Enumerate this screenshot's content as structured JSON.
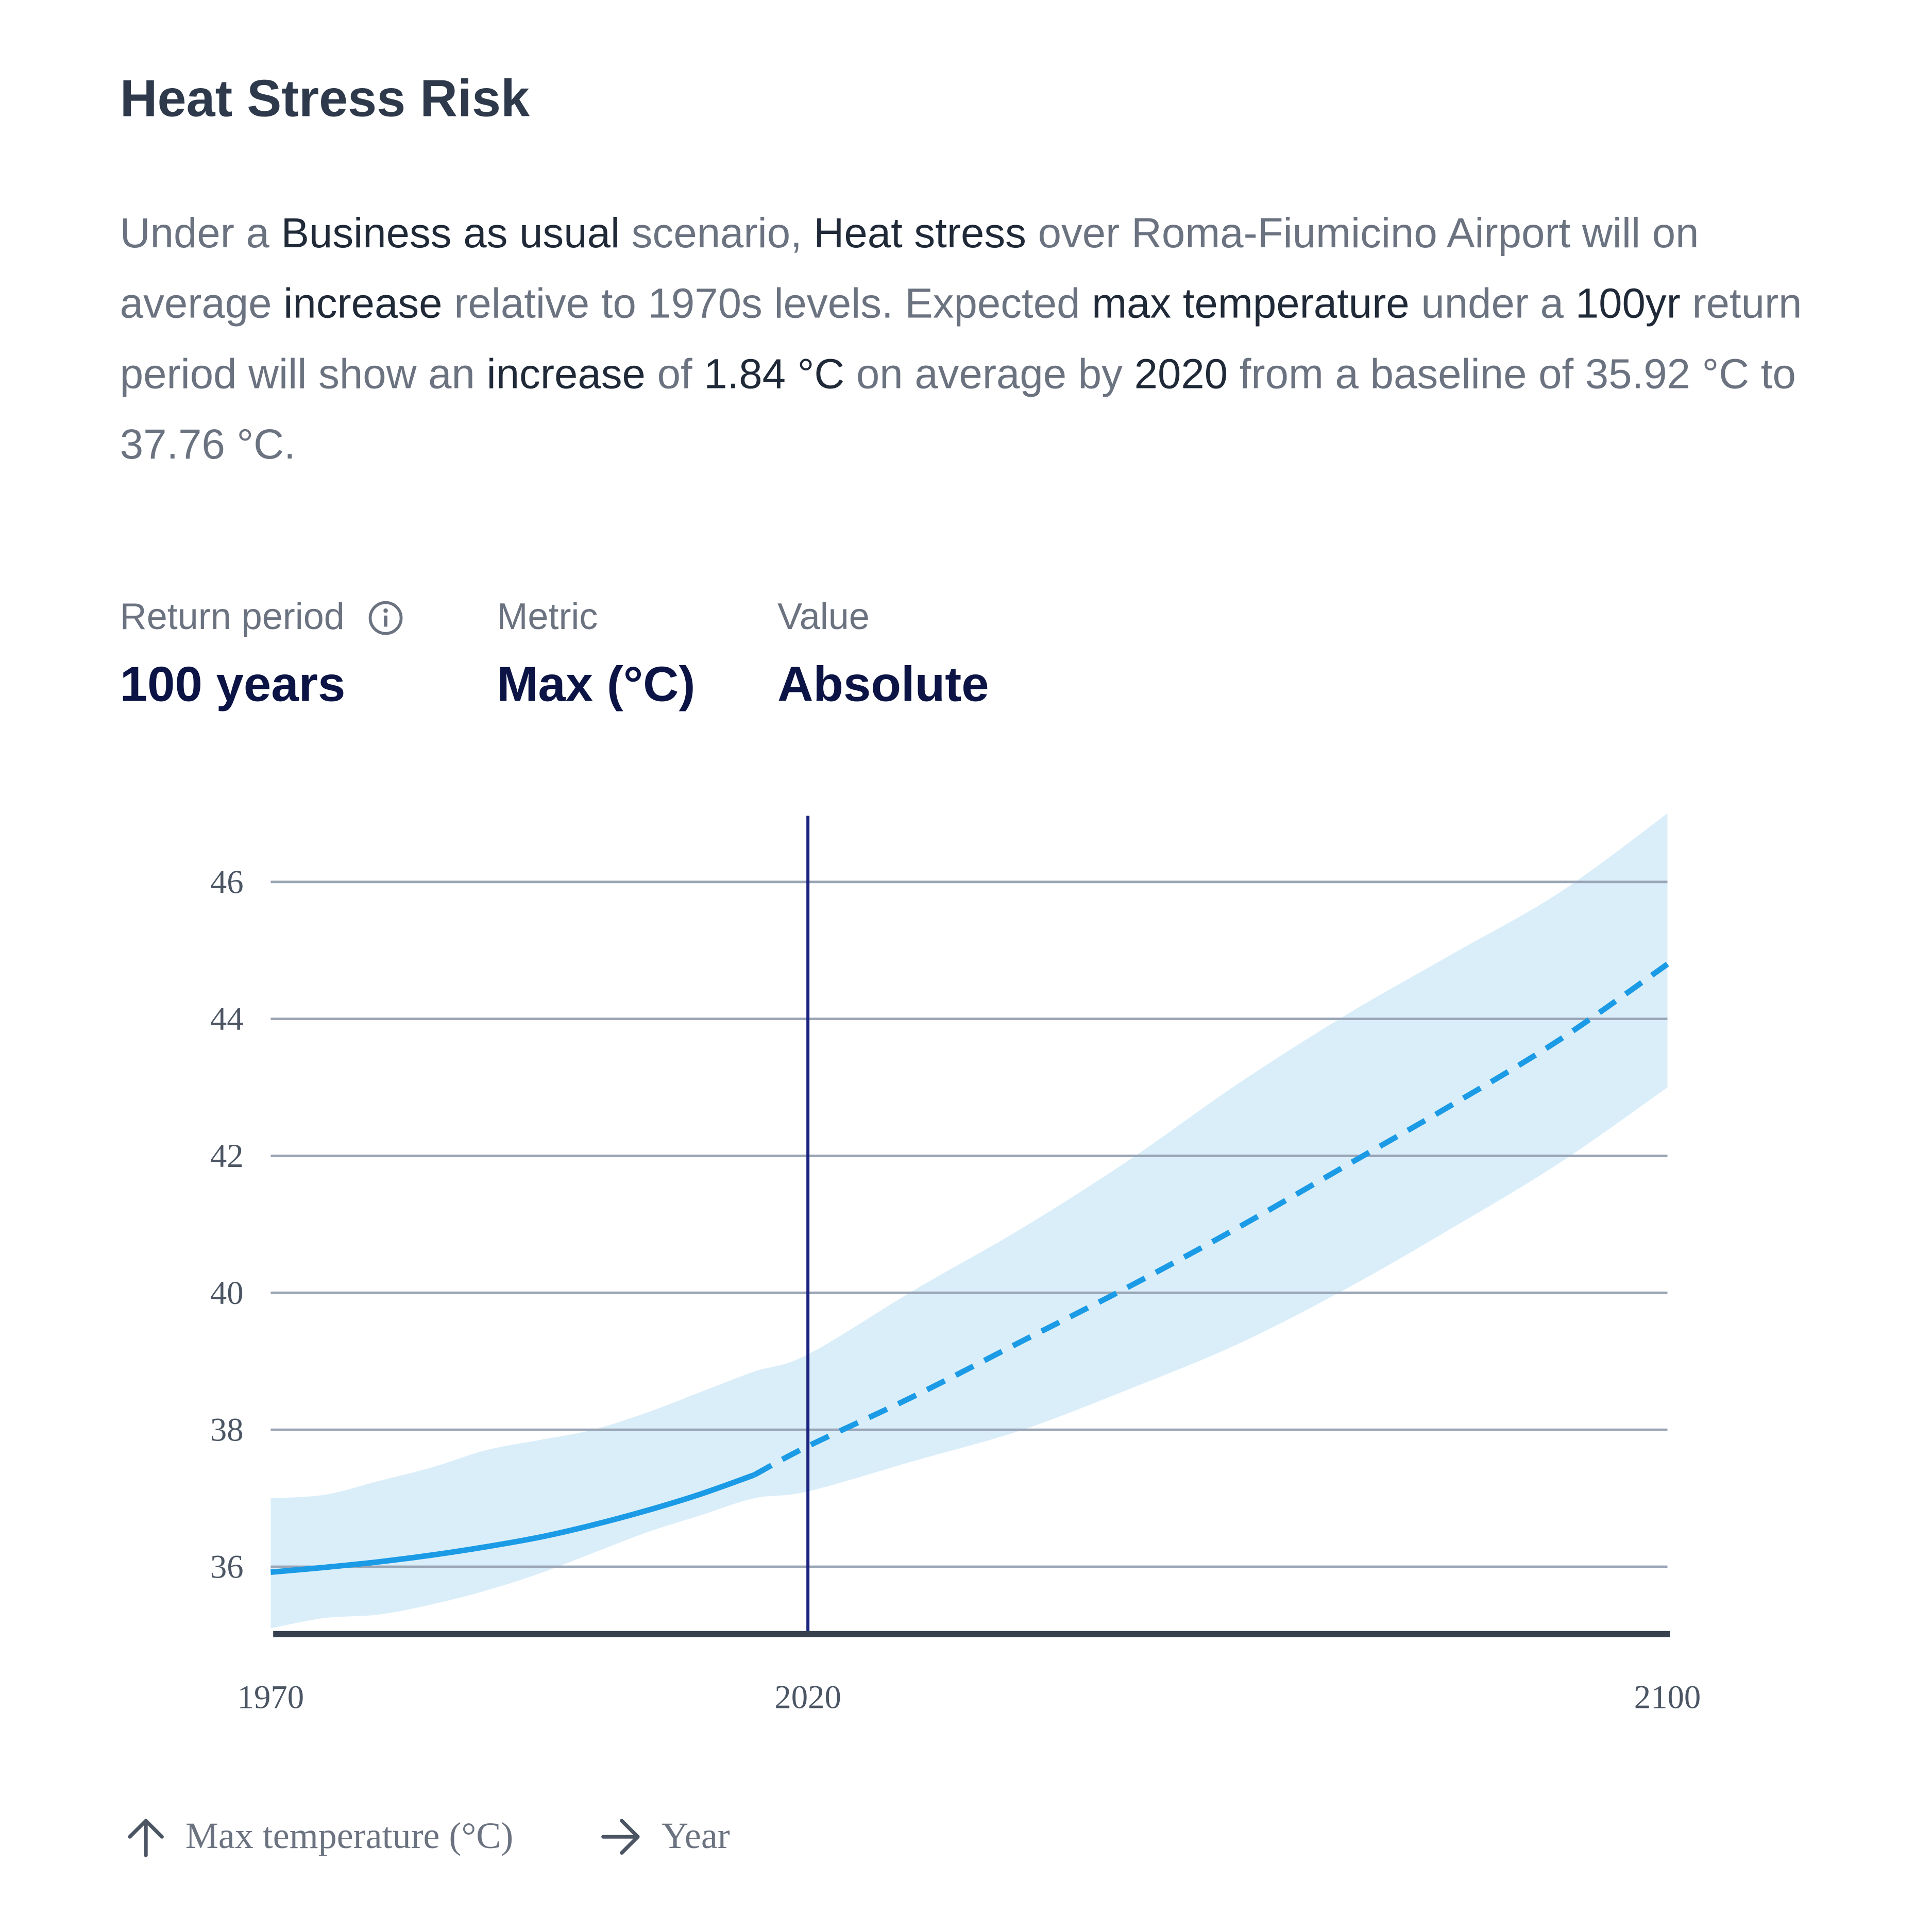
{
  "card": {
    "title": "Heat Stress Risk",
    "summary": [
      {
        "t": "Under a ",
        "hl": false
      },
      {
        "t": "Business as usual",
        "hl": true
      },
      {
        "t": " scenario, ",
        "hl": false
      },
      {
        "t": "Heat stress",
        "hl": true
      },
      {
        "t": " over Roma-Fiumicino Airport will on average ",
        "hl": false
      },
      {
        "t": "increase",
        "hl": true
      },
      {
        "t": " relative to 1970s levels. Expected ",
        "hl": false
      },
      {
        "t": "max temperature",
        "hl": true
      },
      {
        "t": " under a ",
        "hl": false
      },
      {
        "t": "100yr",
        "hl": true
      },
      {
        "t": " return period will show an ",
        "hl": false
      },
      {
        "t": "increase",
        "hl": true
      },
      {
        "t": " of ",
        "hl": false
      },
      {
        "t": "1.84 °C",
        "hl": true
      },
      {
        "t": " on average by ",
        "hl": false
      },
      {
        "t": "2020",
        "hl": true
      },
      {
        "t": " from a baseline of 35.92 °C to 37.76 °C.",
        "hl": false
      }
    ]
  },
  "controls": {
    "return_period": {
      "label": "Return period",
      "value": "100 years",
      "icon": "info-icon"
    },
    "metric": {
      "label": "Metric",
      "value": "Max (°C)"
    },
    "value_type": {
      "label": "Value",
      "value": "Absolute"
    }
  },
  "axis_legend": {
    "y": {
      "icon": "arrow-up-icon",
      "label": "Max temperature (°C)"
    },
    "x": {
      "icon": "arrow-right-icon",
      "label": "Year"
    }
  },
  "colors": {
    "line": "#1b9be6",
    "band": "#daeefa",
    "grid": "#9aa6b6",
    "reference_line": "#1a237e",
    "baseline": "#36404e"
  },
  "chart_data": {
    "type": "line",
    "x_ticks": [
      1970,
      2020,
      2100
    ],
    "y_ticks": [
      36,
      38,
      40,
      42,
      44,
      46
    ],
    "xlim": [
      1970,
      2100
    ],
    "ylim": [
      35,
      47
    ],
    "reference_year": 2020,
    "grid": true,
    "series": [
      {
        "style": "solid",
        "x": [
          1970,
          1975,
          1980,
          1985,
          1990,
          1995,
          2000,
          2005,
          2010,
          2015
        ],
        "y": [
          35.92,
          35.99,
          36.07,
          36.17,
          36.29,
          36.43,
          36.61,
          36.82,
          37.06,
          37.34
        ]
      },
      {
        "style": "dashed",
        "x": [
          2015,
          2020,
          2030,
          2040,
          2050,
          2060,
          2070,
          2080,
          2090,
          2100
        ],
        "y": [
          37.34,
          37.76,
          38.5,
          39.3,
          40.1,
          40.95,
          41.85,
          42.75,
          43.7,
          44.8
        ]
      }
    ],
    "band": {
      "x": [
        1970,
        1975,
        1980,
        1985,
        1990,
        1995,
        2000,
        2005,
        2010,
        2015,
        2020,
        2030,
        2040,
        2050,
        2060,
        2070,
        2080,
        2090,
        2100
      ],
      "lower": [
        35.1,
        35.25,
        35.3,
        35.45,
        35.65,
        35.9,
        36.2,
        36.5,
        36.75,
        37.0,
        37.1,
        37.55,
        38.0,
        38.6,
        39.25,
        40.05,
        40.95,
        41.9,
        43.0
      ],
      "upper": [
        37.0,
        37.05,
        37.25,
        37.45,
        37.7,
        37.85,
        38.0,
        38.25,
        38.55,
        38.85,
        39.1,
        40.05,
        40.95,
        41.95,
        43.05,
        44.05,
        44.95,
        45.85,
        47.0
      ]
    }
  }
}
